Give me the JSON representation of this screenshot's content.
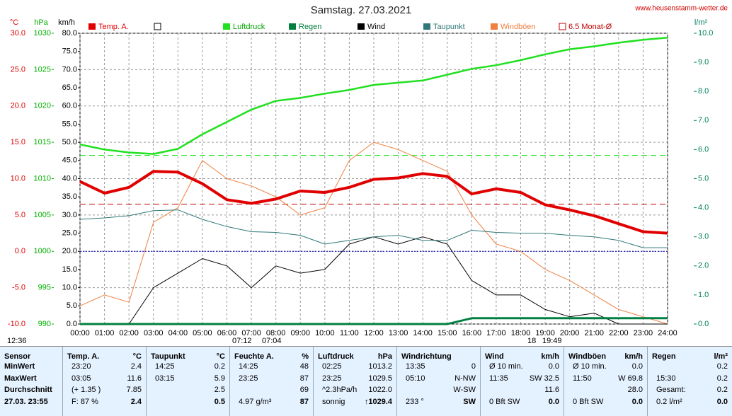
{
  "chart_data": {
    "type": "line",
    "title": "Samstag. 27.03.2021",
    "source": "www.heusenstamm-wetter.de",
    "units": {
      "y": "°C",
      "y2": "hPa",
      "y3": "km/h",
      "y4": "l/m²"
    },
    "x": [
      0,
      1,
      2,
      3,
      4,
      5,
      6,
      7,
      8,
      9,
      10,
      11,
      12,
      13,
      14,
      15,
      16,
      17,
      18,
      19,
      20,
      21,
      22,
      23,
      24
    ],
    "xlim": [
      0,
      24
    ],
    "xticks": [
      {
        "value": 0,
        "label": "00:00"
      },
      {
        "value": 1,
        "label": "01:00"
      },
      {
        "value": 2,
        "label": "02:00"
      },
      {
        "value": 3,
        "label": "03:00"
      },
      {
        "value": 4,
        "label": "04:00"
      },
      {
        "value": 5,
        "label": "05:00"
      },
      {
        "value": 6,
        "label": "06:00"
      },
      {
        "value": 7,
        "label": "07:00"
      },
      {
        "value": 8,
        "label": "08:00"
      },
      {
        "value": 9,
        "label": "09:00"
      },
      {
        "value": 10,
        "label": "10:00"
      },
      {
        "value": 11,
        "label": "11:00"
      },
      {
        "value": 12,
        "label": "12:00"
      },
      {
        "value": 13,
        "label": "13:00"
      },
      {
        "value": 14,
        "label": "14:00"
      },
      {
        "value": 15,
        "label": "15:00"
      },
      {
        "value": 16,
        "label": "16:00"
      },
      {
        "value": 17,
        "label": "17:00"
      },
      {
        "value": 18,
        "label": "18:00"
      },
      {
        "value": 19,
        "label": "19:00"
      },
      {
        "value": 20,
        "label": "20:00"
      },
      {
        "value": 21,
        "label": "21:00"
      },
      {
        "value": 22,
        "label": "22:00"
      },
      {
        "value": 23,
        "label": "23:00"
      },
      {
        "value": 24,
        "label": "24:00"
      }
    ],
    "ylim": [
      -10,
      30
    ],
    "yticks": [
      {
        "value": -10,
        "label": "-10.0"
      },
      {
        "value": -5,
        "label": "-5.0"
      },
      {
        "value": 0,
        "label": "0.0"
      },
      {
        "value": 5,
        "label": "5.0"
      },
      {
        "value": 10,
        "label": "10.0"
      },
      {
        "value": 15,
        "label": "15.0"
      },
      {
        "value": 20,
        "label": "20.0"
      },
      {
        "value": 25,
        "label": "25.0"
      },
      {
        "value": 30,
        "label": "30.0"
      }
    ],
    "y2lim": [
      990,
      1030
    ],
    "y2ticks": [
      990,
      995,
      1000,
      1005,
      1010,
      1015,
      1020,
      1025,
      1030
    ],
    "y3lim": [
      0,
      80
    ],
    "y3ticks": [
      {
        "value": 0,
        "label": "0.0"
      },
      {
        "value": 5,
        "label": "5.0"
      },
      {
        "value": 10,
        "label": "10.0"
      },
      {
        "value": 15,
        "label": "15.0"
      },
      {
        "value": 20,
        "label": "20.0"
      },
      {
        "value": 25,
        "label": "25.0"
      },
      {
        "value": 30,
        "label": "30.0"
      },
      {
        "value": 35,
        "label": "35.0"
      },
      {
        "value": 40,
        "label": "40.0"
      },
      {
        "value": 45,
        "label": "45.0"
      },
      {
        "value": 50,
        "label": "50.0"
      },
      {
        "value": 55,
        "label": "55.0"
      },
      {
        "value": 60,
        "label": "60.0"
      },
      {
        "value": 65,
        "label": "65.0"
      },
      {
        "value": 70,
        "label": "70.0"
      },
      {
        "value": 75,
        "label": "75.0"
      },
      {
        "value": 80,
        "label": "80.0"
      }
    ],
    "y4lim": [
      0,
      10
    ],
    "y4ticks": [
      {
        "value": 0,
        "label": "0.0"
      },
      {
        "value": 1,
        "label": "1.0"
      },
      {
        "value": 2,
        "label": "2.0"
      },
      {
        "value": 3,
        "label": "3.0"
      },
      {
        "value": 4,
        "label": "4.0"
      },
      {
        "value": 5,
        "label": "5.0"
      },
      {
        "value": 6,
        "label": "6.0"
      },
      {
        "value": 7,
        "label": "7.0"
      },
      {
        "value": 8,
        "label": "8.0"
      },
      {
        "value": 9,
        "label": "9.0"
      },
      {
        "value": 10,
        "label": "10.0"
      }
    ],
    "grid": true,
    "series": [
      {
        "name": "Temp. A.",
        "color": "#e00000",
        "axis": "y",
        "values": [
          9.6,
          8.0,
          8.8,
          11.0,
          10.9,
          9.3,
          7.1,
          6.6,
          7.2,
          8.3,
          8.1,
          8.8,
          9.9,
          10.1,
          10.7,
          10.3,
          7.9,
          8.6,
          8.1,
          6.4,
          5.7,
          4.9,
          3.8,
          2.7,
          2.5
        ]
      },
      {
        "name": "Luftdruck",
        "color": "#20e020",
        "axis": "y2",
        "values": [
          1014.7,
          1014.0,
          1013.6,
          1013.4,
          1014.1,
          1016.1,
          1017.8,
          1019.5,
          1020.7,
          1021.1,
          1021.7,
          1022.2,
          1022.9,
          1023.2,
          1023.5,
          1024.3,
          1025.1,
          1025.6,
          1026.3,
          1027.1,
          1027.8,
          1028.2,
          1028.7,
          1029.1,
          1029.4
        ]
      },
      {
        "name": "Regen",
        "color": "#008040",
        "axis": "y4",
        "values": [
          0,
          0,
          0,
          0,
          0,
          0,
          0,
          0,
          0,
          0,
          0,
          0,
          0,
          0,
          0,
          0,
          0.2,
          0.2,
          0.2,
          0.2,
          0.2,
          0.2,
          0.2,
          0.2,
          0.2
        ]
      },
      {
        "name": "Wind",
        "color": "#000000",
        "axis": "y3",
        "values": [
          0,
          0,
          0,
          10,
          14,
          18,
          16,
          10,
          16,
          14,
          15,
          22,
          24,
          22,
          24,
          22,
          12,
          8,
          8,
          4,
          2,
          3,
          0,
          0,
          0
        ]
      },
      {
        "name": "Taupunkt",
        "color": "#307878",
        "axis": "y",
        "values": [
          4.4,
          4.6,
          4.9,
          5.6,
          5.7,
          4.4,
          3.4,
          2.7,
          2.6,
          2.2,
          1.0,
          1.5,
          2.0,
          2.2,
          1.5,
          1.5,
          2.9,
          2.6,
          2.5,
          2.5,
          2.2,
          2.0,
          1.5,
          0.5,
          0.5
        ]
      },
      {
        "name": "Windböen",
        "color": "#f08040",
        "axis": "y3",
        "values": [
          5,
          8,
          6,
          28,
          32,
          45,
          40,
          38,
          35,
          30,
          32,
          45,
          50,
          48,
          45,
          42,
          30,
          22,
          20,
          15,
          12,
          8,
          4,
          2,
          0
        ]
      }
    ],
    "hlines": [
      {
        "value": 1013.2,
        "axis": "y2",
        "color": "#00e000",
        "style": "dashed"
      },
      {
        "value": 6.5,
        "axis": "y",
        "color": "#c00000",
        "style": "dashed",
        "label": "6.5 Monat-Ø"
      },
      {
        "value": 0,
        "axis": "y",
        "color": "#0000c0",
        "style": "dotted"
      }
    ],
    "annotations": [
      "12:36",
      "07:12",
      "07:04",
      "18",
      "19:49"
    ]
  },
  "table": {
    "columns": [
      {
        "header": "Sensor",
        "rows": [
          {
            "left": "MinWert"
          },
          {
            "left": "MaxWert"
          },
          {
            "left": "Durchschnitt"
          },
          {
            "left": "27.03. 23:55"
          }
        ]
      },
      {
        "header": "Temp. A.",
        "unit": "°C",
        "rows": [
          {
            "left": "23:20",
            "right": "2.4"
          },
          {
            "left": "03:05",
            "right": "11.6"
          },
          {
            "left": "(+ 1.35 )",
            "right": "7.85"
          },
          {
            "left": "F: 87 %",
            "right": "2.4"
          }
        ]
      },
      {
        "header": "Taupunkt",
        "unit": "°C",
        "rows": [
          {
            "left": "14:25",
            "right": "0.2"
          },
          {
            "left": "03:15",
            "right": "5.9"
          },
          {
            "right": "2.5"
          },
          {
            "right": "0.5"
          }
        ]
      },
      {
        "header": "Feuchte A.",
        "unit": "%",
        "rows": [
          {
            "left": "14:25",
            "right": "48"
          },
          {
            "left": "23:25",
            "right": "87"
          },
          {
            "right": "69"
          },
          {
            "left": "4.97 g/m³",
            "right": "87"
          }
        ]
      },
      {
        "header": "Luftdruck",
        "unit": "hPa",
        "rows": [
          {
            "left": "02:25",
            "right": "1013.2"
          },
          {
            "left": "23:25",
            "right": "1029.5"
          },
          {
            "left": "^2.3hPa/h",
            "right": "1022.0"
          },
          {
            "left": "sonnig",
            "right": "↑1029.4"
          }
        ]
      },
      {
        "header": "Windrichtung",
        "rows": [
          {
            "left": "13:35",
            "right": "0"
          },
          {
            "left": "05:10",
            "right": "N-NW"
          },
          {
            "right": "W-SW"
          },
          {
            "left": "233 °",
            "right": "SW"
          }
        ]
      },
      {
        "header": "Wind",
        "unit": "km/h",
        "rows": [
          {
            "left": "Ø 10 min.",
            "right": "0.0"
          },
          {
            "left": "11:35",
            "right": "SW 32.5"
          },
          {
            "right": "11.6"
          },
          {
            "left": "0 Bft SW",
            "right": "0.0"
          }
        ]
      },
      {
        "header": "Windböen",
        "unit": "km/h",
        "rows": [
          {
            "left": "Ø 10 min.",
            "right": "0.0"
          },
          {
            "left": "11:50",
            "right": "W 69.8"
          },
          {
            "right": "28.0"
          },
          {
            "left": "0 Bft SW",
            "right": "0.0"
          }
        ]
      },
      {
        "header": "Regen",
        "unit": "l/m²",
        "rows": [
          {
            "right": "0.2"
          },
          {
            "left": "15:30",
            "right": "0.2"
          },
          {
            "left": "Gesamt:",
            "right": "0.2"
          },
          {
            "left": "0.2 l/m²",
            "right": "0.0"
          }
        ]
      }
    ]
  }
}
